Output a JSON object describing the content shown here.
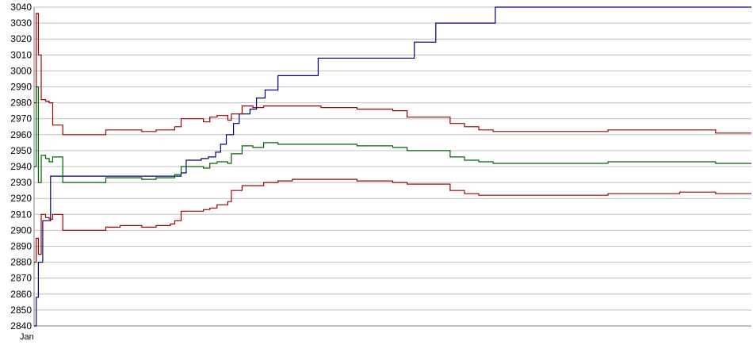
{
  "chart_data": {
    "type": "line",
    "title": "",
    "xlabel": "",
    "ylabel": "",
    "ylim": [
      2840,
      3040
    ],
    "y_ticks": [
      2840,
      2850,
      2860,
      2870,
      2880,
      2890,
      2900,
      2910,
      2920,
      2930,
      2940,
      2950,
      2960,
      2970,
      2980,
      2990,
      3000,
      3010,
      3020,
      3030,
      3040
    ],
    "x_tick_labels_visible": [
      "Jan"
    ],
    "x_range": [
      0,
      100
    ],
    "grid": "horizontal",
    "legend": "none",
    "series": [
      {
        "color": "#000080",
        "x": [
          0,
          0.3,
          0.6,
          1.2,
          2.2,
          2.3,
          14.4,
          14.5,
          20.5,
          21.2,
          21.7,
          22.3,
          22.8,
          23.3,
          24.3,
          25.3,
          26.0,
          26.8,
          27.8,
          28.6,
          29.4,
          30.1,
          31.0,
          32.2,
          34.0,
          38.2,
          39.6,
          45.0,
          52.0,
          53.0,
          55.2,
          56.0,
          64.2,
          64.3,
          100
        ],
        "values": [
          2840,
          2858,
          2880,
          2906,
          2906,
          2934,
          2934,
          2934,
          2936,
          2944,
          2944,
          2944,
          2944,
          2945,
          2946,
          2949,
          2954,
          2960,
          2967,
          2973,
          2973,
          2976,
          2983,
          2988,
          2997,
          2997,
          3008,
          3008,
          3008,
          3018,
          3018,
          3030,
          3030,
          3040,
          3040
        ]
      },
      {
        "color": "#a00000",
        "x": [
          0,
          0.3,
          0.6,
          1.0,
          1.6,
          2.1,
          2.6,
          4.0,
          6.0,
          8.0,
          10.0,
          12.0,
          15.0,
          17.0,
          19.0,
          19.6,
          20.5,
          22.0,
          23.6,
          24.5,
          25.5,
          26.5,
          27.0,
          27.5,
          29.0,
          30.5,
          32.0,
          34.0,
          36.0,
          40.0,
          45.0,
          50.0,
          52.0,
          56.0,
          58.0,
          60.0,
          62.0,
          64.0,
          66.0,
          70.0,
          80.0,
          90.0,
          95.0,
          100
        ],
        "values": [
          2980,
          3036,
          3010,
          2982,
          2981,
          2980,
          2966,
          2960,
          2960,
          2960,
          2963,
          2963,
          2962,
          2963,
          2963,
          2965,
          2970,
          2970,
          2968,
          2971,
          2972,
          2972,
          2969,
          2973,
          2978,
          2977,
          2978,
          2978,
          2978,
          2977,
          2976,
          2975,
          2971,
          2971,
          2967,
          2965,
          2963,
          2962,
          2962,
          2962,
          2963,
          2963,
          2961,
          2961
        ]
      },
      {
        "color": "#006400",
        "x": [
          0,
          0.3,
          0.6,
          1.0,
          1.6,
          2.1,
          2.6,
          4.0,
          6.0,
          8.0,
          10.0,
          12.0,
          15.0,
          17.0,
          19.0,
          19.6,
          20.5,
          22.0,
          23.6,
          24.5,
          25.5,
          26.5,
          27.0,
          27.5,
          29.0,
          30.5,
          32.0,
          34.0,
          36.0,
          40.0,
          45.0,
          50.0,
          52.0,
          56.0,
          58.0,
          60.0,
          62.0,
          64.0,
          66.0,
          70.0,
          80.0,
          90.0,
          95.0,
          100
        ],
        "values": [
          2940,
          2990,
          2930,
          2947,
          2945,
          2943,
          2946,
          2930,
          2930,
          2930,
          2933,
          2933,
          2932,
          2933,
          2933,
          2935,
          2940,
          2940,
          2939,
          2942,
          2943,
          2943,
          2942,
          2948,
          2953,
          2952,
          2955,
          2954,
          2954,
          2954,
          2953,
          2952,
          2950,
          2950,
          2946,
          2944,
          2943,
          2942,
          2942,
          2942,
          2943,
          2943,
          2942,
          2942
        ]
      },
      {
        "color": "#a00000",
        "x": [
          0,
          0.3,
          0.6,
          1.0,
          1.6,
          2.1,
          2.6,
          4.0,
          6.0,
          8.0,
          10.0,
          12.0,
          15.0,
          17.0,
          19.0,
          19.6,
          20.5,
          22.0,
          23.6,
          24.5,
          25.5,
          26.5,
          27.0,
          27.5,
          29.0,
          30.5,
          32.0,
          34.0,
          36.0,
          40.0,
          45.0,
          50.0,
          52.0,
          56.0,
          58.0,
          60.0,
          62.0,
          64.0,
          66.0,
          70.0,
          80.0,
          90.0,
          95.0,
          100
        ],
        "values": [
          2880,
          2895,
          2885,
          2910,
          2908,
          2907,
          2910,
          2900,
          2900,
          2900,
          2902,
          2903,
          2902,
          2903,
          2904,
          2906,
          2912,
          2912,
          2913,
          2914,
          2916,
          2916,
          2918,
          2925,
          2928,
          2928,
          2930,
          2931,
          2932,
          2932,
          2931,
          2930,
          2929,
          2929,
          2925,
          2923,
          2922,
          2922,
          2922,
          2922,
          2923,
          2924,
          2923,
          2923
        ]
      }
    ]
  }
}
